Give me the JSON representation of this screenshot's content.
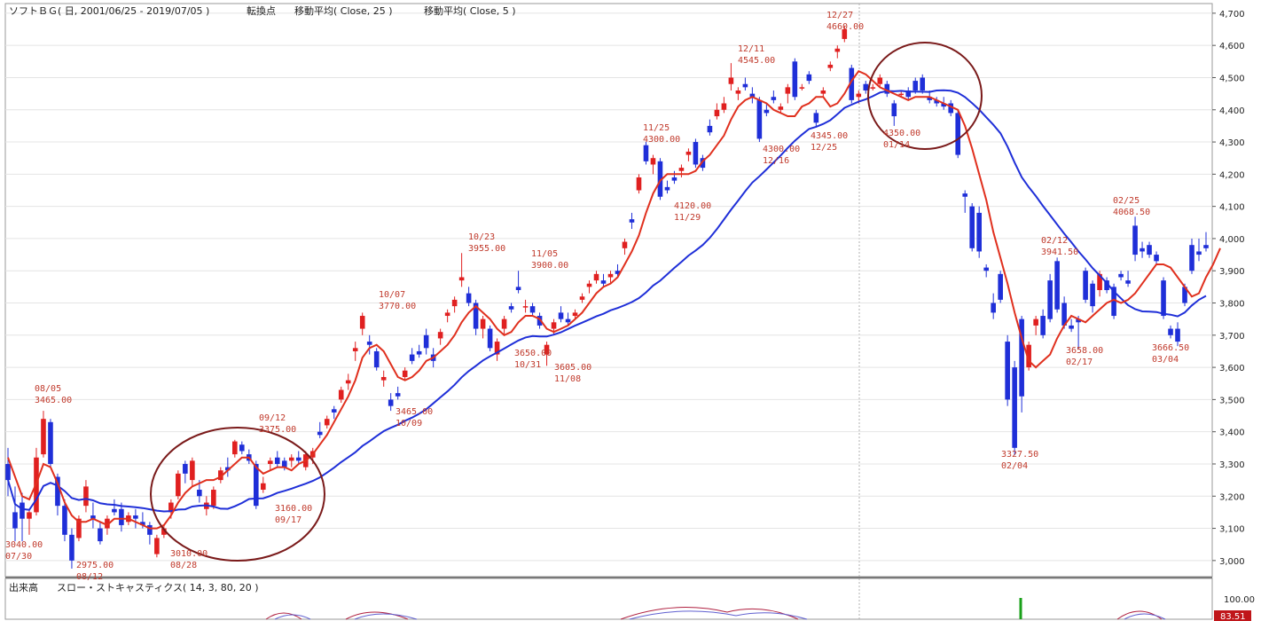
{
  "header": {
    "title": "ソフトＢＧ( 日, 2001/06/25 - 2019/07/05 )",
    "turning_point": "転換点",
    "ma_long": "移動平均( Close, 25 )",
    "ma_short": "移動平均( Close, 5 )"
  },
  "lower_panel": {
    "volume_label": "出来高",
    "stoch_label": "スロー・ストキャスティクス( 14, 3, 80, 20 )",
    "axis_top": "100.00",
    "current_value": "83.51"
  },
  "colors": {
    "up": "#e02020",
    "down": "#1f2fd8",
    "ma_short": "#e0301e",
    "ma_long": "#1f2fd8",
    "circle": "#7a1a1a"
  },
  "chart_data": {
    "type": "candlestick",
    "y_axis": {
      "min": 2950,
      "max": 4730,
      "ticks": [
        "3,000",
        "3,100",
        "3,200",
        "3,300",
        "3,400",
        "3,500",
        "3,600",
        "3,700",
        "3,800",
        "3,900",
        "4,000",
        "4,100",
        "4,200",
        "4,300",
        "4,400",
        "4,500",
        "4,600",
        "4,700"
      ],
      "tick_values": [
        3000,
        3100,
        3200,
        3300,
        3400,
        3500,
        3600,
        3700,
        3800,
        3900,
        4000,
        4100,
        4200,
        4300,
        4400,
        4500,
        4600,
        4700
      ]
    },
    "candles": [
      [
        3300,
        3350,
        3200,
        3250
      ],
      [
        3150,
        3230,
        3060,
        3100
      ],
      [
        3180,
        3210,
        3060,
        3130
      ],
      [
        3130,
        3160,
        3080,
        3150
      ],
      [
        3150,
        3350,
        3140,
        3320
      ],
      [
        3330,
        3465,
        3320,
        3440
      ],
      [
        3430,
        3440,
        3290,
        3300
      ],
      [
        3260,
        3270,
        3140,
        3170
      ],
      [
        3170,
        3190,
        3060,
        3080
      ],
      [
        3080,
        3100,
        2975,
        3000
      ],
      [
        3070,
        3140,
        3060,
        3130
      ],
      [
        3170,
        3250,
        3150,
        3230
      ],
      [
        3140,
        3180,
        3100,
        3130
      ],
      [
        3100,
        3120,
        3050,
        3060
      ],
      [
        3100,
        3140,
        3080,
        3130
      ],
      [
        3160,
        3190,
        3140,
        3150
      ],
      [
        3160,
        3180,
        3090,
        3110
      ],
      [
        3120,
        3150,
        3110,
        3140
      ],
      [
        3140,
        3160,
        3100,
        3130
      ],
      [
        3120,
        3150,
        3100,
        3110
      ],
      [
        3110,
        3120,
        3050,
        3080
      ],
      [
        3020,
        3080,
        3010,
        3070
      ],
      [
        3080,
        3110,
        3070,
        3100
      ],
      [
        3150,
        3190,
        3130,
        3180
      ],
      [
        3200,
        3280,
        3190,
        3270
      ],
      [
        3300,
        3310,
        3240,
        3270
      ],
      [
        3250,
        3320,
        3230,
        3310
      ],
      [
        3220,
        3250,
        3180,
        3200
      ],
      [
        3160,
        3200,
        3140,
        3180
      ],
      [
        3170,
        3230,
        3160,
        3220
      ],
      [
        3250,
        3290,
        3240,
        3280
      ],
      [
        3290,
        3320,
        3260,
        3280
      ],
      [
        3330,
        3375,
        3320,
        3370
      ],
      [
        3360,
        3370,
        3330,
        3340
      ],
      [
        3330,
        3345,
        3300,
        3310
      ],
      [
        3300,
        3310,
        3160,
        3170
      ],
      [
        3220,
        3260,
        3210,
        3240
      ],
      [
        3300,
        3320,
        3280,
        3310
      ],
      [
        3320,
        3340,
        3290,
        3300
      ],
      [
        3310,
        3320,
        3280,
        3290
      ],
      [
        3310,
        3330,
        3290,
        3320
      ],
      [
        3320,
        3340,
        3300,
        3310
      ],
      [
        3290,
        3340,
        3280,
        3330
      ],
      [
        3320,
        3350,
        3300,
        3340
      ],
      [
        3400,
        3430,
        3380,
        3390
      ],
      [
        3420,
        3450,
        3410,
        3440
      ],
      [
        3470,
        3480,
        3440,
        3460
      ],
      [
        3500,
        3540,
        3490,
        3530
      ],
      [
        3550,
        3580,
        3530,
        3560
      ],
      [
        3650,
        3680,
        3620,
        3660
      ],
      [
        3720,
        3770,
        3700,
        3760
      ],
      [
        3680,
        3700,
        3640,
        3670
      ],
      [
        3650,
        3660,
        3590,
        3600
      ],
      [
        3560,
        3590,
        3540,
        3570
      ],
      [
        3500,
        3520,
        3465,
        3480
      ],
      [
        3520,
        3540,
        3500,
        3510
      ],
      [
        3570,
        3600,
        3560,
        3590
      ],
      [
        3640,
        3660,
        3610,
        3620
      ],
      [
        3650,
        3670,
        3630,
        3640
      ],
      [
        3700,
        3720,
        3640,
        3660
      ],
      [
        3640,
        3660,
        3600,
        3620
      ],
      [
        3690,
        3720,
        3670,
        3710
      ],
      [
        3760,
        3780,
        3740,
        3770
      ],
      [
        3790,
        3820,
        3770,
        3810
      ],
      [
        3870,
        3955,
        3850,
        3880
      ],
      [
        3830,
        3850,
        3790,
        3800
      ],
      [
        3800,
        3810,
        3700,
        3720
      ],
      [
        3720,
        3760,
        3690,
        3750
      ],
      [
        3720,
        3730,
        3650,
        3660
      ],
      [
        3640,
        3690,
        3620,
        3680
      ],
      [
        3720,
        3760,
        3700,
        3750
      ],
      [
        3790,
        3800,
        3770,
        3780
      ],
      [
        3850,
        3900,
        3830,
        3840
      ],
      [
        3790,
        3810,
        3770,
        3790
      ],
      [
        3790,
        3800,
        3760,
        3770
      ],
      [
        3760,
        3770,
        3720,
        3730
      ],
      [
        3640,
        3680,
        3605,
        3670
      ],
      [
        3720,
        3750,
        3700,
        3740
      ],
      [
        3770,
        3790,
        3740,
        3750
      ],
      [
        3750,
        3770,
        3730,
        3740
      ],
      [
        3760,
        3780,
        3750,
        3770
      ],
      [
        3810,
        3830,
        3800,
        3820
      ],
      [
        3850,
        3870,
        3830,
        3860
      ],
      [
        3870,
        3900,
        3860,
        3890
      ],
      [
        3870,
        3890,
        3850,
        3860
      ],
      [
        3880,
        3900,
        3860,
        3890
      ],
      [
        3900,
        3920,
        3880,
        3890
      ],
      [
        3970,
        4000,
        3950,
        3990
      ],
      [
        4060,
        4080,
        4030,
        4050
      ],
      [
        4150,
        4200,
        4140,
        4190
      ],
      [
        4290,
        4300,
        4230,
        4240
      ],
      [
        4230,
        4260,
        4200,
        4250
      ],
      [
        4240,
        4250,
        4120,
        4130
      ],
      [
        4160,
        4180,
        4140,
        4150
      ],
      [
        4190,
        4210,
        4170,
        4180
      ],
      [
        4210,
        4230,
        4190,
        4220
      ],
      [
        4260,
        4280,
        4240,
        4270
      ],
      [
        4300,
        4310,
        4220,
        4230
      ],
      [
        4250,
        4260,
        4210,
        4220
      ],
      [
        4350,
        4370,
        4320,
        4330
      ],
      [
        4380,
        4420,
        4370,
        4400
      ],
      [
        4400,
        4440,
        4390,
        4420
      ],
      [
        4480,
        4545,
        4460,
        4500
      ],
      [
        4450,
        4470,
        4430,
        4460
      ],
      [
        4480,
        4500,
        4460,
        4470
      ],
      [
        4450,
        4470,
        4420,
        4440
      ],
      [
        4430,
        4440,
        4300,
        4310
      ],
      [
        4400,
        4420,
        4380,
        4390
      ],
      [
        4440,
        4460,
        4420,
        4430
      ],
      [
        4400,
        4420,
        4390,
        4410
      ],
      [
        4450,
        4480,
        4420,
        4470
      ],
      [
        4550,
        4560,
        4430,
        4440
      ],
      [
        4470,
        4480,
        4460,
        4470
      ],
      [
        4510,
        4520,
        4480,
        4490
      ],
      [
        4390,
        4400,
        4345,
        4360
      ],
      [
        4450,
        4470,
        4440,
        4460
      ],
      [
        4530,
        4550,
        4520,
        4540
      ],
      [
        4580,
        4600,
        4560,
        4590
      ],
      [
        4620,
        4660,
        4610,
        4650
      ],
      [
        4530,
        4540,
        4420,
        4430
      ],
      [
        4440,
        4460,
        4420,
        4450
      ],
      [
        4480,
        4490,
        4450,
        4460
      ],
      [
        4470,
        4480,
        4460,
        4470
      ],
      [
        4480,
        4510,
        4470,
        4500
      ],
      [
        4480,
        4490,
        4440,
        4450
      ],
      [
        4420,
        4430,
        4350,
        4380
      ],
      [
        4450,
        4460,
        4440,
        4450
      ],
      [
        4460,
        4470,
        4430,
        4440
      ],
      [
        4490,
        4500,
        4450,
        4460
      ],
      [
        4500,
        4510,
        4450,
        4460
      ],
      [
        4440,
        4460,
        4420,
        4430
      ],
      [
        4430,
        4440,
        4410,
        4420
      ],
      [
        4420,
        4440,
        4400,
        4410
      ],
      [
        4420,
        4430,
        4380,
        4390
      ],
      [
        4390,
        4400,
        4250,
        4260
      ],
      [
        4140,
        4150,
        4080,
        4130
      ],
      [
        4100,
        4110,
        3960,
        3970
      ],
      [
        4080,
        4100,
        3940,
        3960
      ],
      [
        3910,
        3920,
        3880,
        3900
      ],
      [
        3800,
        3830,
        3750,
        3770
      ],
      [
        3890,
        3900,
        3800,
        3810
      ],
      [
        3680,
        3700,
        3480,
        3500
      ],
      [
        3600,
        3620,
        3327,
        3350
      ],
      [
        3750,
        3760,
        3460,
        3510
      ],
      [
        3600,
        3680,
        3590,
        3670
      ],
      [
        3730,
        3760,
        3700,
        3750
      ],
      [
        3760,
        3780,
        3690,
        3700
      ],
      [
        3870,
        3890,
        3740,
        3750
      ],
      [
        3930,
        3941,
        3770,
        3780
      ],
      [
        3800,
        3820,
        3720,
        3730
      ],
      [
        3730,
        3750,
        3710,
        3720
      ],
      [
        3750,
        3760,
        3658,
        3740
      ],
      [
        3900,
        3910,
        3800,
        3810
      ],
      [
        3860,
        3870,
        3770,
        3790
      ],
      [
        3840,
        3900,
        3820,
        3890
      ],
      [
        3870,
        3880,
        3830,
        3840
      ],
      [
        3850,
        3860,
        3750,
        3760
      ],
      [
        3890,
        3900,
        3870,
        3880
      ],
      [
        3870,
        3900,
        3850,
        3860
      ],
      [
        4040,
        4068,
        3930,
        3950
      ],
      [
        3970,
        3990,
        3940,
        3960
      ],
      [
        3980,
        3990,
        3940,
        3950
      ],
      [
        3950,
        3960,
        3920,
        3930
      ],
      [
        3870,
        3880,
        3750,
        3760
      ],
      [
        3720,
        3730,
        3690,
        3700
      ],
      [
        3720,
        3740,
        3666,
        3680
      ],
      [
        3850,
        3860,
        3790,
        3800
      ],
      [
        3980,
        4000,
        3890,
        3900
      ],
      [
        3960,
        4000,
        3930,
        3950
      ],
      [
        3980,
        4020,
        3960,
        3970
      ]
    ],
    "ma_short": [
      3320,
      3260,
      3200,
      3190,
      3240,
      3300,
      3290,
      3240,
      3180,
      3140,
      3120,
      3120,
      3130,
      3120,
      3110,
      3130,
      3130,
      3130,
      3120,
      3110,
      3100,
      3100,
      3110,
      3140,
      3180,
      3210,
      3230,
      3240,
      3250,
      3250,
      3260,
      3280,
      3300,
      3320,
      3320,
      3290,
      3270,
      3280,
      3290,
      3290,
      3280,
      3300,
      3310,
      3330,
      3360,
      3390,
      3430,
      3470,
      3510,
      3560,
      3630,
      3660,
      3670,
      3650,
      3610,
      3570,
      3560,
      3570,
      3590,
      3620,
      3630,
      3650,
      3670,
      3700,
      3740,
      3770,
      3790,
      3770,
      3750,
      3720,
      3700,
      3710,
      3740,
      3760,
      3760,
      3750,
      3720,
      3710,
      3720,
      3730,
      3750,
      3770,
      3800,
      3830,
      3850,
      3860,
      3880,
      3920,
      3960,
      4010,
      4080,
      4140,
      4180,
      4200,
      4200,
      4200,
      4200,
      4210,
      4240,
      4260,
      4290,
      4320,
      4370,
      4410,
      4430,
      4440,
      4430,
      4420,
      4400,
      4390,
      4380,
      4380,
      4410,
      4420,
      4440,
      4440,
      4410,
      4420,
      4450,
      4490,
      4520,
      4510,
      4490,
      4470,
      4460,
      4450,
      4440,
      4430,
      4440,
      4440,
      4440,
      4430,
      4420,
      4410,
      4400,
      4350,
      4280,
      4200,
      4120,
      4020,
      3940,
      3860,
      3770,
      3690,
      3620,
      3600,
      3620,
      3640,
      3690,
      3730,
      3760,
      3750,
      3740,
      3760,
      3780,
      3800,
      3810,
      3800,
      3810,
      3830,
      3860,
      3890,
      3920,
      3920,
      3910,
      3880,
      3850,
      3820,
      3830,
      3880,
      3920,
      3970
    ]
  }
}
